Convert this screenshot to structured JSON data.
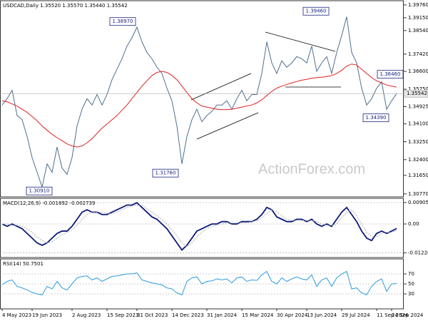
{
  "watermark": "ActionForex.com",
  "chart_data": [
    {
      "type": "line",
      "title": "USDCAD,Daily  1.35520 1.35570 1.35440 1.35542",
      "series": [
        {
          "color": "#4f6f8f",
          "values": [
            1.35,
            1.353,
            1.357,
            1.345,
            1.343,
            1.335,
            1.325,
            1.318,
            1.311,
            1.322,
            1.318,
            1.33,
            1.32,
            1.317,
            1.325,
            1.34,
            1.348,
            1.353,
            1.35,
            1.355,
            1.35,
            1.355,
            1.362,
            1.367,
            1.372,
            1.378,
            1.382,
            1.387,
            1.38,
            1.375,
            1.372,
            1.368,
            1.365,
            1.358,
            1.352,
            1.34,
            1.322,
            1.335,
            1.343,
            1.348,
            1.342,
            1.345,
            1.347,
            1.35,
            1.35,
            1.352,
            1.348,
            1.353,
            1.357,
            1.352,
            1.355,
            1.355,
            1.365,
            1.38,
            1.37,
            1.365,
            1.371,
            1.368,
            1.37,
            1.373,
            1.372,
            1.37,
            1.378,
            1.366,
            1.37,
            1.373,
            1.365,
            1.375,
            1.383,
            1.392,
            1.375,
            1.37,
            1.358,
            1.35,
            1.353,
            1.358,
            1.361,
            1.348,
            1.352,
            1.35542
          ]
        },
        {
          "color": "#e02020",
          "values": [
            1.352,
            1.3515,
            1.3505,
            1.3495,
            1.348,
            1.3465,
            1.3445,
            1.3425,
            1.34,
            1.338,
            1.336,
            1.3345,
            1.333,
            1.3315,
            1.3305,
            1.33,
            1.3305,
            1.332,
            1.334,
            1.3365,
            1.339,
            1.341,
            1.343,
            1.345,
            1.3475,
            1.35,
            1.353,
            1.356,
            1.359,
            1.3615,
            1.364,
            1.3655,
            1.366,
            1.3655,
            1.364,
            1.362,
            1.359,
            1.356,
            1.353,
            1.351,
            1.3495,
            1.349,
            1.3485,
            1.348,
            1.3478,
            1.3478,
            1.348,
            1.3485,
            1.349,
            1.3495,
            1.35,
            1.351,
            1.3525,
            1.3545,
            1.3565,
            1.358,
            1.359,
            1.3598,
            1.3605,
            1.3612,
            1.3618,
            1.3622,
            1.3628,
            1.363,
            1.3632,
            1.3635,
            1.364,
            1.365,
            1.3665,
            1.3685,
            1.3695,
            1.369,
            1.367,
            1.365,
            1.363,
            1.3615,
            1.3605,
            1.3595,
            1.359,
            1.3585
          ]
        }
      ],
      "ylim": [
        1.3063,
        1.3996
      ],
      "yticks": [
        {
          "value": 1.3976,
          "label": "1.39760"
        },
        {
          "value": 1.3915,
          "label": "1.39150"
        },
        {
          "value": 1.3854,
          "label": "1.38540"
        },
        {
          "value": 1.3742,
          "label": "1.37420"
        },
        {
          "value": 1.366,
          "label": "1.36600"
        },
        {
          "value": 1.3575,
          "label": "1.35750"
        },
        {
          "value": 1.34925,
          "label": "1.34925"
        },
        {
          "value": 1.341,
          "label": "1.34100"
        },
        {
          "value": 1.3325,
          "label": "1.33250"
        },
        {
          "value": 1.324,
          "label": "1.32400"
        },
        {
          "value": 1.3165,
          "label": "1.31650"
        },
        {
          "value": 1.3077,
          "label": "1.30770"
        }
      ],
      "last_price": {
        "value": 1.35542,
        "label": "1.35542"
      },
      "annotations": [
        {
          "value": 1.3897,
          "label": "1.38970"
        },
        {
          "value": 1.3946,
          "label": "1.39460"
        },
        {
          "value": 1.3646,
          "label": "1.36460"
        },
        {
          "value": 1.3439,
          "label": "1.34390"
        },
        {
          "value": 1.3176,
          "label": "1.31760"
        },
        {
          "value": 1.3091,
          "label": "1.30910"
        }
      ],
      "grid": false
    },
    {
      "type": "line",
      "title": "MACD(12,26,9) -0.001892 -0.002739",
      "series": [
        {
          "color": "#0d1a7a",
          "values": [
            0,
            -0.001,
            0,
            -0.001,
            -0.002,
            -0.004,
            -0.006,
            -0.008,
            -0.009,
            -0.008,
            -0.006,
            -0.004,
            -0.003,
            -0.003,
            -0.001,
            0.002,
            0.005,
            0.006,
            0.005,
            0.005,
            0.004,
            0.004,
            0.005,
            0.006,
            0.007,
            0.008,
            0.008,
            0.009,
            0.007,
            0.005,
            0.003,
            0.002,
            0,
            -0.002,
            -0.005,
            -0.008,
            -0.011,
            -0.009,
            -0.006,
            -0.003,
            -0.002,
            -0.001,
            0,
            0,
            0.001,
            0.001,
            0,
            0,
            0.001,
            0.001,
            0.001,
            0.002,
            0.004,
            0.007,
            0.006,
            0.003,
            0.002,
            0.001,
            0.001,
            0.002,
            0.002,
            0.001,
            0.002,
            0,
            -0.001,
            0,
            -0.001,
            0.002,
            0.005,
            0.007,
            0.004,
            0.001,
            -0.003,
            -0.006,
            -0.007,
            -0.004,
            -0.003,
            -0.004,
            -0.003,
            -0.001892
          ]
        },
        {
          "color": "#b0b0b0",
          "values": [
            0,
            0,
            -0.0005,
            -0.0005,
            -0.001,
            -0.002,
            -0.0035,
            -0.0055,
            -0.007,
            -0.008,
            -0.0075,
            -0.006,
            -0.0045,
            -0.0035,
            -0.0025,
            -0.0005,
            0.002,
            0.004,
            0.005,
            0.005,
            0.005,
            0.0045,
            0.0045,
            0.005,
            0.006,
            0.007,
            0.0075,
            0.008,
            0.008,
            0.0065,
            0.005,
            0.0035,
            0.002,
            0,
            -0.0025,
            -0.005,
            -0.008,
            -0.0095,
            -0.008,
            -0.0055,
            -0.0035,
            -0.002,
            -0.001,
            -0.0005,
            0,
            0.0005,
            0.0005,
            0.0005,
            0.0005,
            0.0005,
            0.001,
            0.0015,
            0.0025,
            0.0045,
            0.006,
            0.005,
            0.0035,
            0.002,
            0.0015,
            0.0015,
            0.0015,
            0.0015,
            0.0015,
            0.001,
            0,
            -0.0005,
            -0.0005,
            0,
            0.0025,
            0.005,
            0.006,
            0.0035,
            0,
            -0.0035,
            -0.0055,
            -0.0055,
            -0.004,
            -0.0035,
            -0.0035,
            -0.002739
          ]
        }
      ],
      "ylim": [
        -0.014186,
        0.010866
      ],
      "yticks": [
        0.009055,
        {
          "value": 0,
          "label": "0.00"
        },
        -0.012209
      ],
      "grid": true
    },
    {
      "type": "line",
      "title": "RSI(14) 50.7501",
      "categories": [
        "4 May 2023",
        null,
        null,
        null,
        null,
        null,
        "19 Jun 2023",
        null,
        null,
        null,
        null,
        null,
        null,
        null,
        "2 Aug 2023",
        null,
        null,
        null,
        null,
        null,
        null,
        "15 Sep 2023",
        null,
        null,
        null,
        null,
        null,
        "31 Oct 2023",
        null,
        null,
        null,
        null,
        null,
        null,
        "14 Dec 2023",
        null,
        null,
        null,
        null,
        null,
        null,
        "31 Jan 2024",
        null,
        null,
        null,
        null,
        null,
        null,
        "15 Mar 2024",
        null,
        null,
        null,
        null,
        null,
        null,
        "30 Apr 2024",
        null,
        null,
        null,
        null,
        null,
        "13 Jun 2024",
        null,
        null,
        null,
        null,
        null,
        null,
        "29 Jul 2024",
        null,
        null,
        null,
        null,
        null,
        null,
        "11 Sep 2024",
        null,
        null,
        "24 Sep 2024",
        null
      ],
      "series": [
        {
          "color": "#2e9be0",
          "values": [
            48,
            55,
            58,
            45,
            42,
            38,
            33,
            30,
            28,
            45,
            40,
            55,
            42,
            38,
            50,
            62,
            65,
            66,
            58,
            62,
            55,
            60,
            65,
            66,
            68,
            70,
            70,
            72,
            58,
            55,
            52,
            50,
            48,
            42,
            40,
            32,
            28,
            55,
            62,
            64,
            50,
            55,
            56,
            60,
            58,
            60,
            52,
            62,
            64,
            55,
            58,
            57,
            68,
            75,
            55,
            50,
            62,
            55,
            60,
            64,
            60,
            58,
            68,
            45,
            58,
            62,
            45,
            62,
            70,
            75,
            40,
            42,
            32,
            28,
            45,
            55,
            60,
            35,
            50,
            50.7501
          ]
        }
      ],
      "ylim": [
        0,
        100
      ],
      "yticks": [
        70,
        50,
        30
      ],
      "grid": true
    }
  ]
}
